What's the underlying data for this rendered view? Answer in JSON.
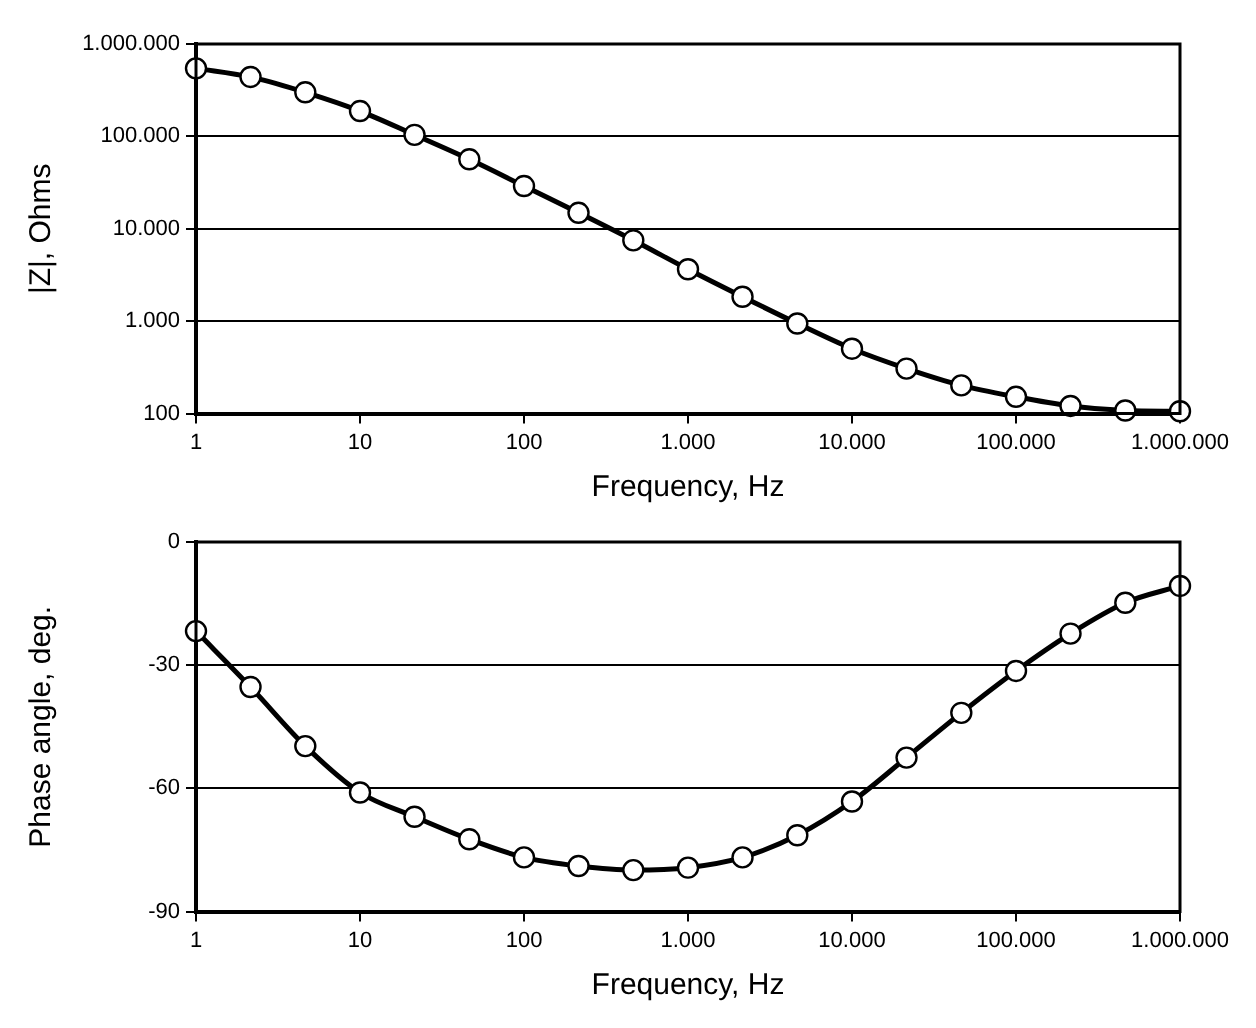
{
  "chart_data": [
    {
      "type": "line",
      "xlabel": "Frequency, Hz",
      "ylabel": "|Z|, Ohms",
      "log": "xy",
      "grid": "y",
      "marker": "circle",
      "line_style": "solid",
      "legend": false,
      "x": [
        1,
        2.15,
        4.64,
        10,
        21.5,
        46.4,
        100,
        215,
        464,
        1000,
        2150,
        4640,
        10000,
        21500,
        46400,
        100000,
        215000,
        464000,
        1000000
      ],
      "series": [
        {
          "color": "#000000",
          "values": [
            545000,
            440000,
            300000,
            188000,
            104000,
            56500,
            29000,
            14900,
            7500,
            3650,
            1840,
            945,
            504,
            307,
            202,
            152,
            121,
            108,
            106
          ]
        }
      ],
      "xlim": [
        1,
        1000000
      ],
      "ylim": [
        100,
        1000000
      ],
      "xticks": [
        1,
        10,
        100,
        {
          "value": 1000,
          "label": "1.000"
        },
        {
          "value": 10000,
          "label": "10.000"
        },
        {
          "value": 100000,
          "label": "100.000"
        },
        {
          "value": 1000000,
          "label": "1.000.000"
        }
      ],
      "yticks": [
        100,
        {
          "value": 1000,
          "label": "1.000"
        },
        {
          "value": 10000,
          "label": "10.000"
        },
        {
          "value": 100000,
          "label": "100.000"
        },
        {
          "value": 1000000,
          "label": "1.000.000"
        }
      ]
    },
    {
      "type": "line",
      "xlabel": "Frequency, Hz",
      "ylabel": "Phase angle, deg.",
      "log": "x",
      "grid": "y",
      "marker": "circle",
      "line_style": "solid",
      "legend": false,
      "x": [
        1,
        2.15,
        4.64,
        10,
        21.5,
        46.4,
        100,
        215,
        464,
        1000,
        2150,
        4640,
        10000,
        21500,
        46400,
        100000,
        215000,
        464000,
        1000000
      ],
      "series": [
        {
          "color": "#000000",
          "values": [
            -21.7,
            -35.3,
            -49.7,
            -61,
            -66.9,
            -72.4,
            -76.8,
            -78.9,
            -79.9,
            -79.3,
            -76.8,
            -71.4,
            -63.2,
            -52.5,
            -41.6,
            -31.4,
            -22.3,
            -14.8,
            -10.7
          ]
        }
      ],
      "xlim": [
        1,
        1000000
      ],
      "ylim": [
        -90,
        0
      ],
      "xticks": [
        1,
        10,
        100,
        {
          "value": 1000,
          "label": "1.000"
        },
        {
          "value": 10000,
          "label": "10.000"
        },
        {
          "value": 100000,
          "label": "100.000"
        },
        {
          "value": 1000000,
          "label": "1.000.000"
        }
      ],
      "yticks": [
        -90,
        -60,
        -30,
        0
      ]
    }
  ]
}
